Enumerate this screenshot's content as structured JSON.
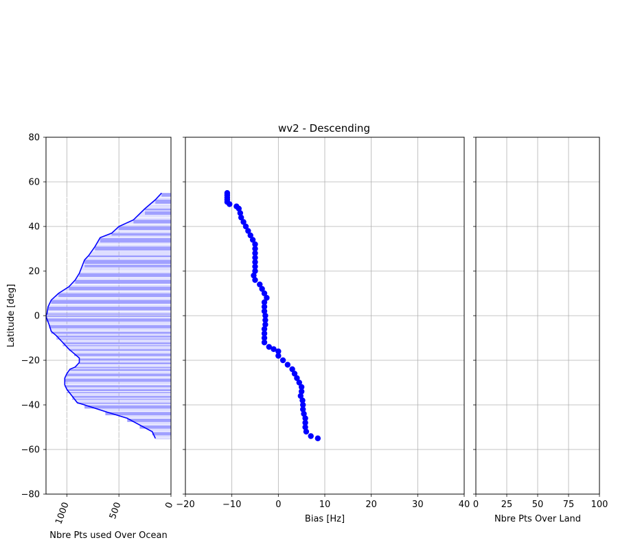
{
  "figure": {
    "title": "wv2 - Descending"
  },
  "chart_data": [
    {
      "type": "area",
      "id": "ocean",
      "xlabel": "Nbre Pts used Over Ocean",
      "ylabel": "Latitude [deg]",
      "xlim": [
        1200,
        0
      ],
      "ylim": [
        -80,
        80
      ],
      "xticks": [
        "1000",
        "500",
        "0"
      ],
      "yticks": [
        "80",
        "60",
        "40",
        "20",
        "0",
        "−20",
        "−40",
        "−60",
        "−80"
      ],
      "grid": true,
      "series": [
        {
          "color": "#0000ff",
          "fill": "#a0a0ff",
          "points": [
            [
              90,
              55
            ],
            [
              150,
              52
            ],
            [
              250,
              48
            ],
            [
              360,
              43
            ],
            [
              500,
              40
            ],
            [
              570,
              37
            ],
            [
              680,
              35
            ],
            [
              730,
              31
            ],
            [
              790,
              27
            ],
            [
              830,
              25
            ],
            [
              880,
              19
            ],
            [
              920,
              16
            ],
            [
              980,
              13
            ],
            [
              1080,
              10
            ],
            [
              1150,
              7
            ],
            [
              1180,
              4
            ],
            [
              1190,
              1
            ],
            [
              1200,
              0
            ],
            [
              1195,
              -1
            ],
            [
              1170,
              -4
            ],
            [
              1150,
              -7
            ],
            [
              1100,
              -9
            ],
            [
              1040,
              -12
            ],
            [
              980,
              -15
            ],
            [
              930,
              -17
            ],
            [
              880,
              -19
            ],
            [
              880,
              -21
            ],
            [
              920,
              -23
            ],
            [
              970,
              -24
            ],
            [
              1000,
              -26
            ],
            [
              1020,
              -28
            ],
            [
              1020,
              -31
            ],
            [
              1000,
              -33
            ],
            [
              950,
              -36
            ],
            [
              900,
              -39
            ],
            [
              830,
              -40
            ],
            [
              630,
              -43
            ],
            [
              420,
              -46
            ],
            [
              300,
              -49
            ],
            [
              180,
              -52
            ],
            [
              150,
              -55
            ]
          ]
        }
      ]
    },
    {
      "type": "scatter",
      "id": "bias",
      "xlabel": "Bias [Hz]",
      "xlim": [
        -20,
        40
      ],
      "ylim": [
        -80,
        80
      ],
      "xticks": [
        "−20",
        "−10",
        "0",
        "10",
        "20",
        "30",
        "40"
      ],
      "grid": true,
      "series": [
        {
          "color": "#0000ff",
          "points": [
            [
              -11,
              55
            ],
            [
              -11,
              54
            ],
            [
              -11,
              53
            ],
            [
              -11,
              52
            ],
            [
              -11,
              51
            ],
            [
              -10.5,
              50
            ],
            [
              -9,
              49
            ],
            [
              -8.5,
              48
            ],
            [
              -8.2,
              46
            ],
            [
              -8,
              44
            ],
            [
              -7.5,
              42
            ],
            [
              -7,
              40
            ],
            [
              -6.5,
              38
            ],
            [
              -6,
              36
            ],
            [
              -5.5,
              34
            ],
            [
              -5,
              32
            ],
            [
              -5,
              30
            ],
            [
              -5,
              28
            ],
            [
              -5,
              26
            ],
            [
              -5,
              24
            ],
            [
              -5,
              22
            ],
            [
              -5,
              20
            ],
            [
              -5.3,
              18
            ],
            [
              -5,
              16
            ],
            [
              -4,
              14
            ],
            [
              -3.5,
              12
            ],
            [
              -3,
              10
            ],
            [
              -2.5,
              8
            ],
            [
              -3,
              6
            ],
            [
              -3,
              4
            ],
            [
              -3,
              2
            ],
            [
              -2.8,
              0
            ],
            [
              -2.8,
              -2
            ],
            [
              -2.8,
              -4
            ],
            [
              -3,
              -6
            ],
            [
              -3,
              -8
            ],
            [
              -3,
              -10
            ],
            [
              -3,
              -12
            ],
            [
              -2,
              -14
            ],
            [
              -1,
              -15
            ],
            [
              0,
              -16
            ],
            [
              0,
              -18
            ],
            [
              1,
              -20
            ],
            [
              2,
              -22
            ],
            [
              3,
              -24
            ],
            [
              3.5,
              -26
            ],
            [
              4,
              -28
            ],
            [
              4.5,
              -30
            ],
            [
              5,
              -32
            ],
            [
              5,
              -34
            ],
            [
              4.8,
              -36
            ],
            [
              5.2,
              -38
            ],
            [
              5.3,
              -40
            ],
            [
              5.3,
              -42
            ],
            [
              5.5,
              -44
            ],
            [
              5.8,
              -46
            ],
            [
              5.8,
              -48
            ],
            [
              5.8,
              -50
            ],
            [
              6,
              -52
            ],
            [
              7,
              -54
            ],
            [
              8.5,
              -55
            ]
          ]
        }
      ]
    },
    {
      "type": "area",
      "id": "land",
      "xlabel": "Nbre Pts Over Land",
      "xlim": [
        0,
        100
      ],
      "ylim": [
        -80,
        80
      ],
      "xticks": [
        "0",
        "25",
        "50",
        "75",
        "100"
      ],
      "grid": true,
      "series": []
    }
  ]
}
